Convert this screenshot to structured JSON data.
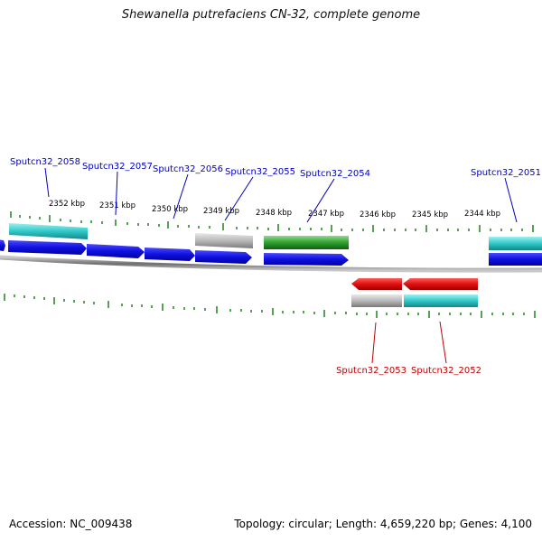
{
  "title": "Shewanella putrefaciens CN-32, complete genome",
  "footer": {
    "accession": "Accession: NC_009438",
    "summary": "Topology: circular; Length: 4,659,220 bp; Genes: 4,100"
  },
  "colors": {
    "forward_cds": "#1010e0",
    "reverse_cds": "#e01010",
    "cyan_feature": "#30c8c8",
    "green_feature": "#30a030",
    "gray_feature": "#b0b0b0",
    "tick": "#2e8b2e",
    "backbone": "#8a8a8a",
    "forward_label": "#0000c0",
    "reverse_label": "#c00000"
  },
  "scale_labels": [
    "2352 kbp",
    "2351 kbp",
    "2350 kbp",
    "2349 kbp",
    "2348 kbp",
    "2347 kbp",
    "2346 kbp",
    "2345 kbp",
    "2344 kbp"
  ],
  "gene_labels": {
    "forward": [
      "Sputcn32_2058",
      "Sputcn32_2057",
      "Sputcn32_2056",
      "Sputcn32_2055",
      "Sputcn32_2054",
      "Sputcn32_2051"
    ],
    "reverse": [
      "Sputcn32_2053",
      "Sputcn32_2052"
    ]
  }
}
